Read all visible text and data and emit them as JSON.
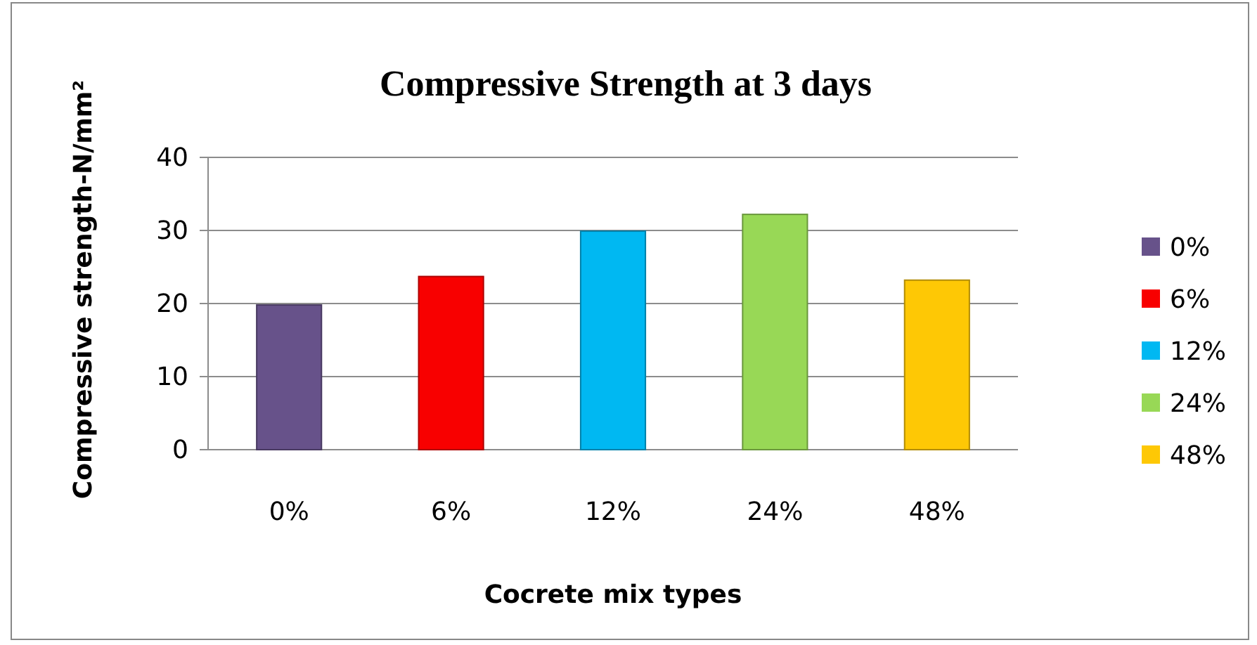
{
  "chart_data": {
    "type": "bar",
    "title": "Compressive Strength at 3 days",
    "xlabel": "Cocrete mix types",
    "ylabel": "Compressive strength-N/mm²",
    "categories": [
      "0%",
      "6%",
      "12%",
      "24%",
      "48%"
    ],
    "series": [
      {
        "name": "0%",
        "color": "#67528a",
        "values": [
          19.8,
          null,
          null,
          null,
          null
        ]
      },
      {
        "name": "6%",
        "color": "#f80000",
        "values": [
          null,
          23.7,
          null,
          null,
          null
        ]
      },
      {
        "name": "12%",
        "color": "#00b8f2",
        "values": [
          null,
          null,
          29.9,
          null,
          null
        ]
      },
      {
        "name": "24%",
        "color": "#98d856",
        "values": [
          null,
          null,
          null,
          32.2,
          null
        ]
      },
      {
        "name": "48%",
        "color": "#fec805",
        "values": [
          null,
          null,
          null,
          null,
          23.2
        ]
      }
    ],
    "ylim": [
      0,
      40
    ],
    "yticks": [
      0,
      10,
      20,
      30,
      40
    ],
    "grid": "y",
    "legend": "right"
  }
}
